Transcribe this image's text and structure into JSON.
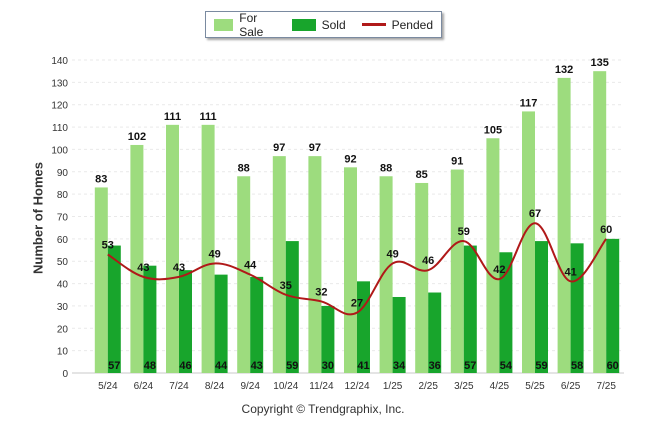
{
  "chart_data": {
    "type": "bar",
    "ylabel": "Number of Homes",
    "xlabel": "",
    "ylim": [
      0,
      140
    ],
    "yticks": [
      0,
      10,
      20,
      30,
      40,
      50,
      60,
      70,
      80,
      90,
      100,
      110,
      120,
      130,
      140
    ],
    "grid": true,
    "legend_placement": "top-center",
    "categories": [
      "5/24",
      "6/24",
      "7/24",
      "8/24",
      "9/24",
      "10/24",
      "11/24",
      "12/24",
      "1/25",
      "2/25",
      "3/25",
      "4/25",
      "5/25",
      "6/25",
      "7/25"
    ],
    "series": [
      {
        "name": "For Sale",
        "type": "bar",
        "color": "#9ddc7e",
        "values": [
          83,
          102,
          111,
          111,
          88,
          97,
          97,
          92,
          88,
          85,
          91,
          105,
          117,
          132,
          135
        ]
      },
      {
        "name": "Sold",
        "type": "bar",
        "color": "#18a52c",
        "values": [
          57,
          48,
          46,
          44,
          43,
          59,
          30,
          41,
          34,
          36,
          57,
          54,
          59,
          58,
          60
        ]
      },
      {
        "name": "Pended",
        "type": "line",
        "color": "#b01919",
        "values": [
          53,
          43,
          43,
          49,
          44,
          35,
          32,
          27,
          49,
          46,
          59,
          42,
          67,
          41,
          60
        ]
      }
    ]
  },
  "footer": {
    "copyright": "Copyright © Trendgraphix, Inc."
  }
}
